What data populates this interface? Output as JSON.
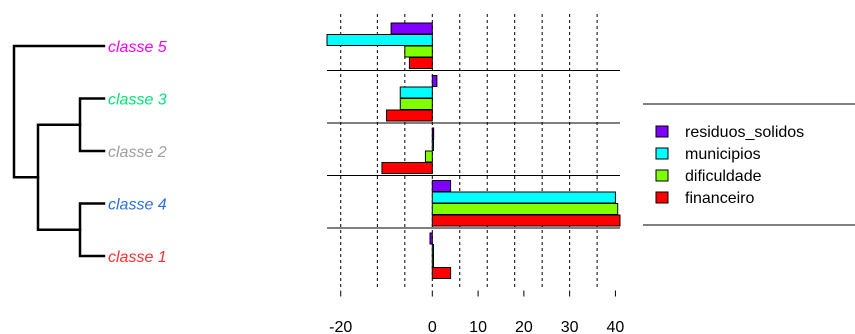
{
  "chart_data": {
    "type": "bar",
    "orientation": "horizontal",
    "dendrogram_order": [
      "classe 5",
      "classe 3",
      "classe 2",
      "classe 4",
      "classe 1"
    ],
    "classes": [
      {
        "name": "classe 5",
        "color": "#ff00ff",
        "values": {
          "residuos_solidos": -9,
          "municipios": -23,
          "dificuldade": -6,
          "financeiro": -5
        }
      },
      {
        "name": "classe 3",
        "color": "#00e676",
        "values": {
          "residuos_solidos": 1,
          "municipios": -7,
          "dificuldade": -7,
          "financeiro": -10
        }
      },
      {
        "name": "classe 2",
        "color": "#9e9e9e",
        "values": {
          "residuos_solidos": 0.3,
          "municipios": 0,
          "dificuldade": -1.5,
          "financeiro": -11
        }
      },
      {
        "name": "classe 4",
        "color": "#2f6fd8",
        "values": {
          "residuos_solidos": 4,
          "municipios": 40,
          "dificuldade": 40.5,
          "financeiro": 41
        }
      },
      {
        "name": "classe 1",
        "color": "#ff3030",
        "values": {
          "residuos_solidos": -0.5,
          "municipios": 0,
          "dificuldade": 0,
          "financeiro": 4
        }
      }
    ],
    "series": [
      {
        "key": "residuos_solidos",
        "name": "residuos_solidos",
        "color": "#7f00ff"
      },
      {
        "key": "municipios",
        "name": "municipios",
        "color": "#00ffff"
      },
      {
        "key": "dificuldade",
        "name": "dificuldade",
        "color": "#80ff00"
      },
      {
        "key": "financeiro",
        "name": "financeiro",
        "color": "#ff0000"
      }
    ],
    "xticks": [
      -20,
      0,
      10,
      20,
      30,
      40
    ],
    "gridlines": [
      -20,
      -12,
      -6,
      0,
      6,
      12,
      18,
      24,
      30,
      36
    ],
    "xlim": [
      -23,
      41
    ],
    "title": "",
    "xlabel": "",
    "ylabel": "",
    "legend_position": "right"
  }
}
